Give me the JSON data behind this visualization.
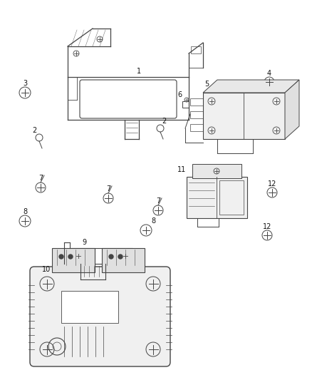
{
  "bg_color": "#ffffff",
  "line_color": "#444444",
  "label_color": "#111111",
  "fig_width": 4.38,
  "fig_height": 5.33,
  "dpi": 100
}
